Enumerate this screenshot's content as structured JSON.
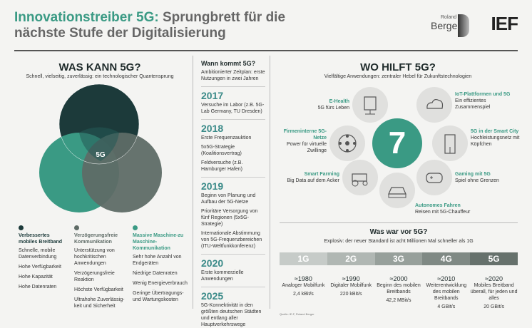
{
  "header": {
    "title_teal": "Innovationstreiber 5G:",
    "title_rest_line1": " Sprungbrett für die",
    "title_line2": "nächste Stufe der Digitalisierung",
    "logo_small": "Roland",
    "logo_big": "Berger",
    "logo_ief": "IEF"
  },
  "what": {
    "heading": "WAS KANN 5G?",
    "subheading": "Schnell, vielseitig, zuverlässig: ein technologischer Quantensprung",
    "center_label": "5G",
    "colors": {
      "dark": "#1c3a3a",
      "teal": "#3a9a84",
      "grey": "#5e6b66"
    },
    "columns": [
      {
        "title": "Verbessertes mobiles Breitband",
        "items": [
          "Schnelle, mobile Datenverbindung",
          "Hohe Verfügbarkeit",
          "Hohe Kapazität",
          "Hohe Datenraten"
        ]
      },
      {
        "title": "Verzögerungsfreie Kommunikation",
        "items": [
          "Unterstützung von hochkritischen Anwendungen",
          "Verzögerungsfreie Reaktion",
          "Höchste Verfügbarkeit",
          "Ultrahohe Zuverlässig­keit und Sicherheit"
        ]
      },
      {
        "title": "Massive Maschine-zu Maschine-Kommunikation",
        "items": [
          "Sehr hohe Anzahl von Endgeräten",
          "Niedrige Datenraten",
          "Wenig Energiever­brauch",
          "Geringe Übertragungs- und Wartungskosten"
        ]
      }
    ]
  },
  "when": {
    "heading": "Wann kommt 5G?",
    "subheading": "Ambitionierter Zeitplan: erste Nutzungen in zwei Jahren",
    "timeline": [
      {
        "year": "2017",
        "entries": [
          "Versuche im Labor (z.B. 5G-Lab Germany, TU Dresden)"
        ]
      },
      {
        "year": "2018",
        "entries": [
          "Erste Frequenzauktion",
          "5x5G-Strategie (Koalitionsvertrag)",
          "Feldversuche (z.B. Hamburger Hafen)"
        ]
      },
      {
        "year": "2019",
        "entries": [
          "Beginn von Planung und Aufbau der 5G-Netze",
          "Prioritäre Versorgung von fünf Regionen (5x5G-Strategie)",
          "Internationale Abstimmung von 5G-Frequenzbereichen (ITU-Weltfunkkonferenz)"
        ]
      },
      {
        "year": "2020",
        "entries": [
          "Erste kommerzielle Anwendungen"
        ]
      },
      {
        "year": "2025",
        "entries": [
          "5G-Konnektivität in den größten deutschen Städten und entlang aller Hauptverkehrswege"
        ]
      }
    ]
  },
  "help": {
    "heading": "WO HILFT 5G?",
    "subheading": "Vielfältige Anwendungen: zentraler Hebel für Zukunftstechnologien",
    "center_number": "7",
    "apps": [
      {
        "title": "E-Health",
        "text": "5G fürs Leben",
        "icon": "medical-device-icon"
      },
      {
        "title": "IoT-Plattformen und 5G",
        "text": "Ein effizientes Zusammenspiel",
        "icon": "cloud-icon"
      },
      {
        "title": "Firmeninterne 5G-Netze",
        "text": "Power für virtuelle Zwillinge",
        "icon": "network-icon"
      },
      {
        "title": "5G in der Smart City",
        "text": "Hochleistungsnetz mit Köpfchen",
        "icon": "building-icon"
      },
      {
        "title": "Smart Farming",
        "text": "Big Data auf dem Acker",
        "icon": "tractor-icon"
      },
      {
        "title": "Gaming mit 5G",
        "text": "Spiel ohne Grenzen",
        "icon": "gamepad-icon"
      },
      {
        "title": "Autonomes Fahren",
        "text": "Reisen mit 5G-Chauffeur",
        "icon": "car-icon"
      }
    ]
  },
  "before": {
    "heading": "Was war vor 5G?",
    "subheading": "Explosiv: der neuer Standard ist acht Millionen Mal schneller als 1G",
    "generations": [
      {
        "label": "1G",
        "color": "#c6cbc8",
        "year": "≈1980",
        "desc": "Analoger Mobilfunk",
        "speed": "2,4 kBit/s"
      },
      {
        "label": "2G",
        "color": "#b0b7b3",
        "year": "≈1990",
        "desc": "Digitaler Mobilfunk",
        "speed": "220 kBit/s"
      },
      {
        "label": "3G",
        "color": "#97a09b",
        "year": "≈2000",
        "desc": "Beginn des mobilen Breitbands",
        "speed": "42,2 MBit/s"
      },
      {
        "label": "4G",
        "color": "#7f8984",
        "year": "≈2010",
        "desc": "Weiterentwicklung des mobilen Breitbands",
        "speed": "4 GBit/s"
      },
      {
        "label": "5G",
        "color": "#66716c",
        "year": "≈2020",
        "desc": "Mobiles Breitband überall, für jeden und alles",
        "speed": "20 GBit/s"
      }
    ],
    "source": "Quelle: IE.F, Roland Berger"
  }
}
